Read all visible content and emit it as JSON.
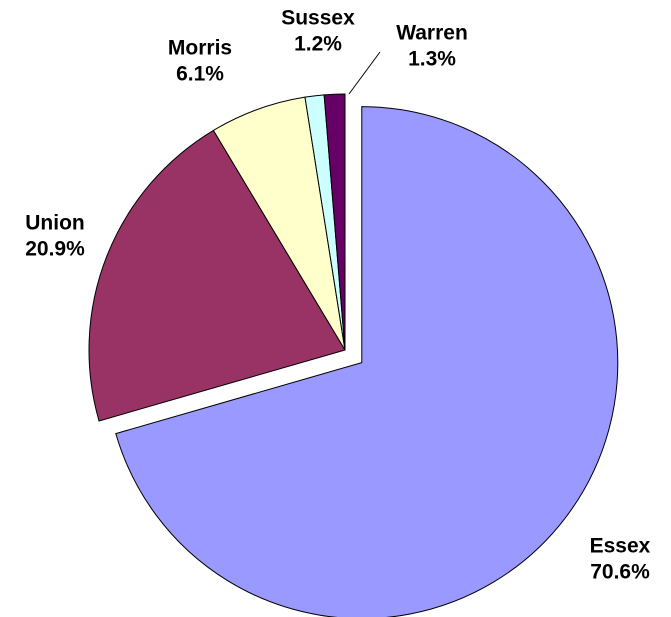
{
  "chart_data": {
    "type": "pie",
    "categories": [
      "Essex",
      "Union",
      "Morris",
      "Sussex",
      "Warren"
    ],
    "values": [
      70.6,
      20.9,
      6.1,
      1.2,
      1.3
    ],
    "value_labels": [
      "70.6%",
      "20.9%",
      "6.1%",
      "1.2%",
      "1.3%"
    ],
    "colors": [
      "#9999ff",
      "#993366",
      "#ffffcc",
      "#ccffff",
      "#660066"
    ],
    "explode": [
      true,
      false,
      false,
      false,
      false
    ]
  }
}
